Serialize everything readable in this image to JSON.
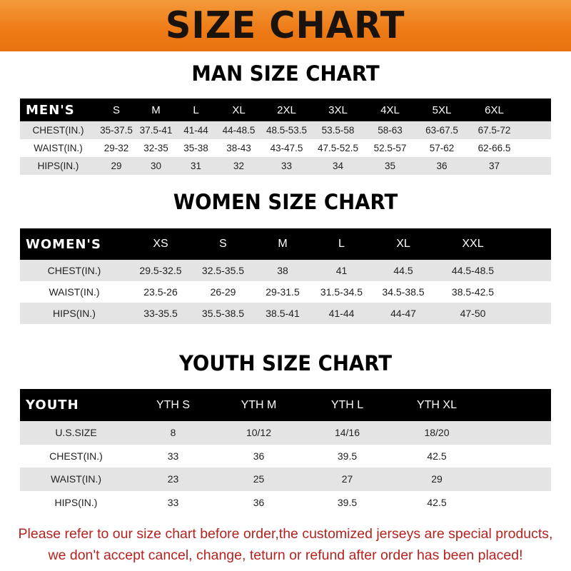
{
  "banner": "SIZE CHART",
  "men": {
    "title": "MAN SIZE CHART",
    "header": [
      "MEN'S",
      "S",
      "M",
      "L",
      "XL",
      "2XL",
      "3XL",
      "4XL",
      "5XL",
      "6XL"
    ],
    "rows": [
      [
        "CHEST(IN.)",
        "35-37.5",
        "37.5-41",
        "41-44",
        "44-48.5",
        "48.5-53.5",
        "53.5-58",
        "58-63",
        "63-67.5",
        "67.5-72"
      ],
      [
        "WAIST(IN.)",
        "29-32",
        "32-35",
        "35-38",
        "38-43",
        "43-47.5",
        "47.5-52.5",
        "52.5-57",
        "57-62",
        "62-66.5"
      ],
      [
        "HIPS(IN.)",
        "29",
        "30",
        "31",
        "32",
        "33",
        "34",
        "35",
        "36",
        "37"
      ]
    ]
  },
  "women": {
    "title": "WOMEN SIZE CHART",
    "header": [
      "WOMEN'S",
      "XS",
      "S",
      "M",
      "L",
      "XL",
      "XXL"
    ],
    "rows": [
      [
        "CHEST(IN.)",
        "29.5-32.5",
        "32.5-35.5",
        "38",
        "41",
        "44.5",
        "44.5-48.5"
      ],
      [
        "WAIST(IN.)",
        "23.5-26",
        "26-29",
        "29-31.5",
        "31.5-34.5",
        "34.5-38.5",
        "38.5-42.5"
      ],
      [
        "HIPS(IN.)",
        "33-35.5",
        "35.5-38.5",
        "38.5-41",
        "41-44",
        "44-47",
        "47-50"
      ]
    ]
  },
  "youth": {
    "title": "YOUTH SIZE CHART",
    "header": [
      "YOUTH",
      "YTH S",
      "YTH M",
      "YTH L",
      "YTH XL"
    ],
    "rows": [
      [
        "U.S.SIZE",
        "8",
        "10/12",
        "14/16",
        "18/20"
      ],
      [
        "CHEST(IN.)",
        "33",
        "36",
        "39.5",
        "42.5"
      ],
      [
        "WAIST(IN.)",
        "23",
        "25",
        "27",
        "29"
      ],
      [
        "HIPS(IN.)",
        "33",
        "36",
        "39.5",
        "42.5"
      ]
    ]
  },
  "note": {
    "line1": "Please refer to our size chart before order,the customized jerseys are special products,",
    "line2": "we don't accept cancel, change, teturn or refund after order has been placed!"
  },
  "colors": {
    "banner": "#ee7a16",
    "header_row": "#000000",
    "stripe": "#e4e4e4",
    "note": "#b5231f"
  }
}
